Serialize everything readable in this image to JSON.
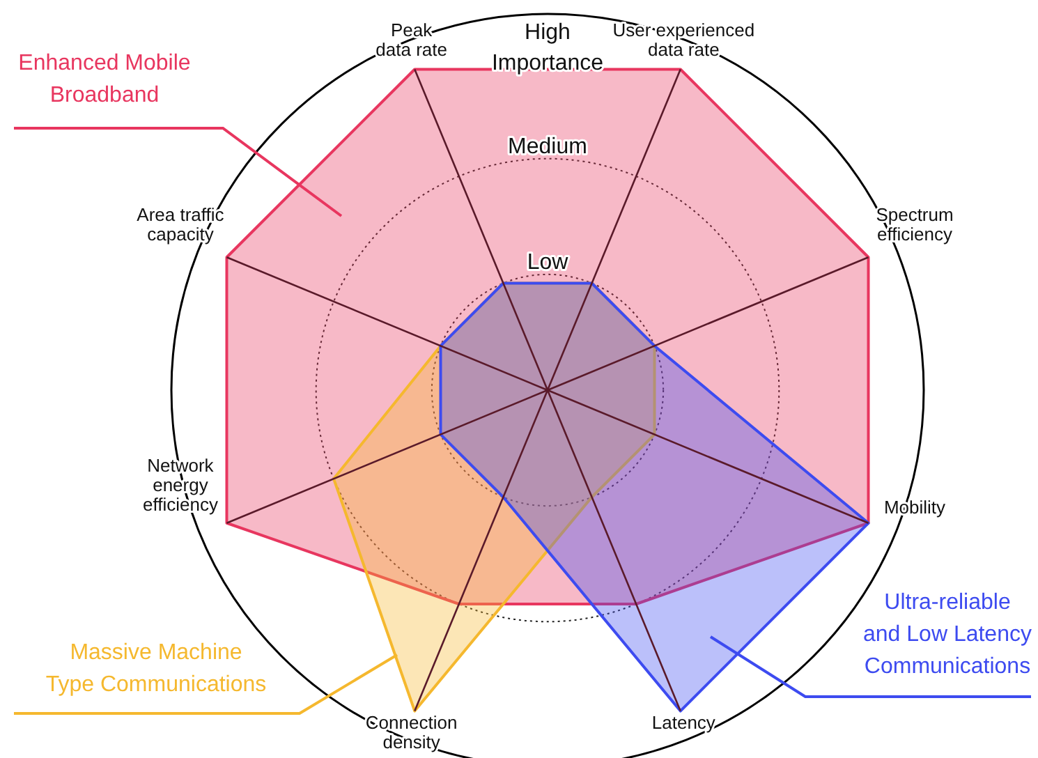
{
  "chart_data": {
    "type": "radar",
    "categories": [
      "Peak\ndata rate",
      "User experienced\ndata rate",
      "Spectrum\nefficiency",
      "Mobility",
      "Latency",
      "Connection\ndensity",
      "Network\nenergy\nefficiency",
      "Area traffic\ncapacity"
    ],
    "series": [
      {
        "name": "Enhanced Mobile\nBroadband",
        "color": "#e8365f",
        "values": [
          3,
          3,
          3,
          3,
          2,
          2,
          3,
          3
        ]
      },
      {
        "name": "Massive Machine\nType Communications",
        "color": "#f5b82e",
        "values": [
          1,
          1,
          1,
          1,
          1,
          3,
          2,
          1
        ]
      },
      {
        "name": "Ultra-reliable\nand Low Latency\nCommunications",
        "color": "#3d4bf0",
        "values": [
          1,
          1,
          1,
          3,
          3,
          1,
          1,
          1
        ]
      }
    ],
    "ylim": [
      0,
      3.25
    ],
    "yticks": [
      {
        "value": 1,
        "label": "Low"
      },
      {
        "value": 2,
        "label": "Medium"
      },
      {
        "value": 3,
        "label": "High\nImportance"
      }
    ]
  }
}
